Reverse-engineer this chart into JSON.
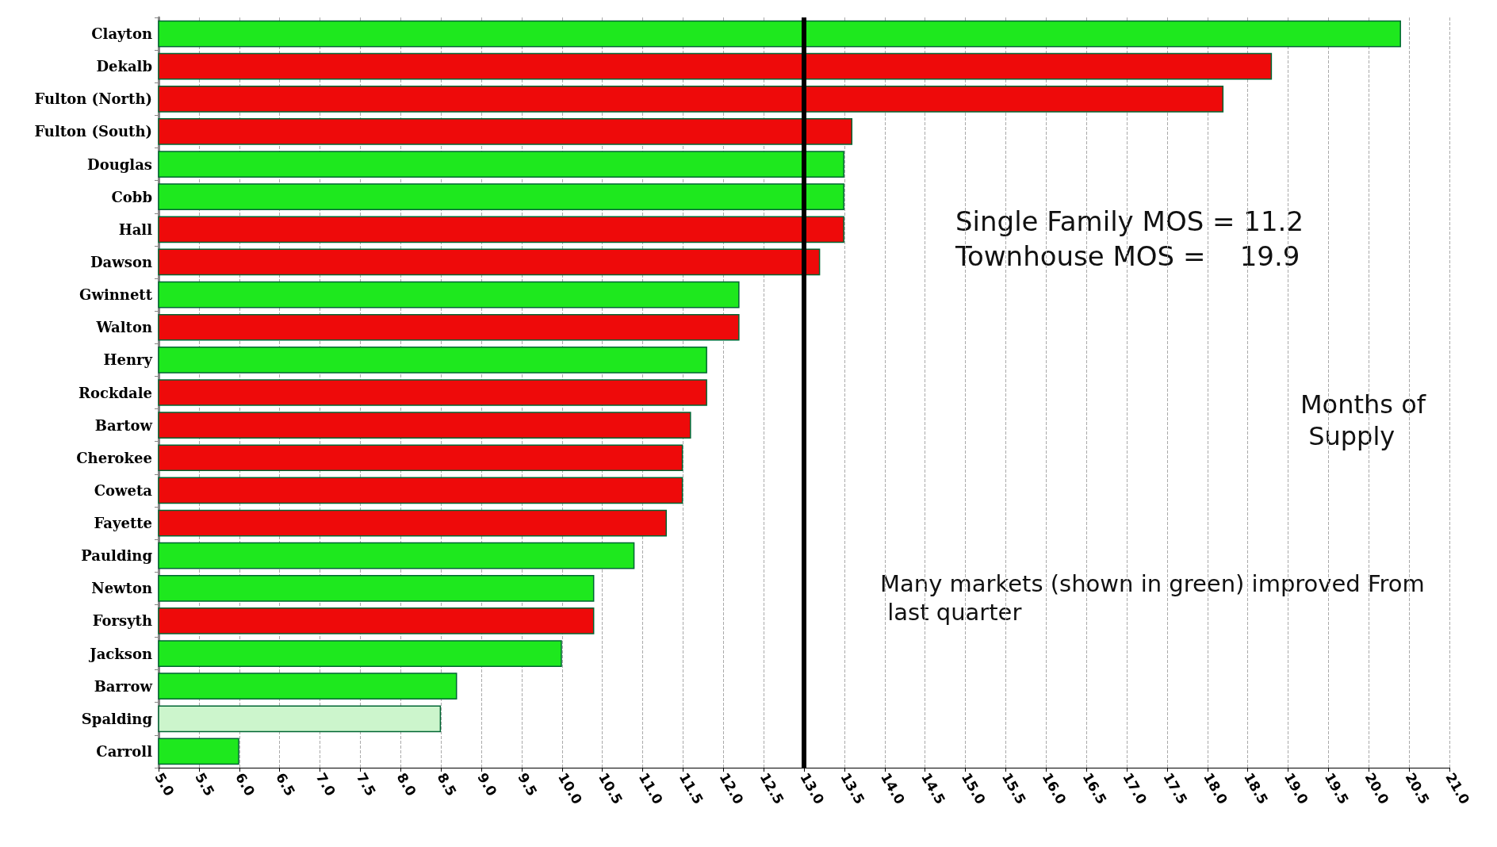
{
  "chart_data": {
    "type": "bar",
    "orientation": "horizontal",
    "categories": [
      "Clayton",
      "Dekalb",
      "Fulton (North)",
      "Fulton (South)",
      "Douglas",
      "Cobb",
      "Hall",
      "Dawson",
      "Gwinnett",
      "Walton",
      "Henry",
      "Rockdale",
      "Bartow",
      "Cherokee",
      "Coweta",
      "Fayette",
      "Paulding",
      "Newton",
      "Forsyth",
      "Jackson",
      "Barrow",
      "Spalding",
      "Carroll"
    ],
    "values": [
      20.4,
      18.8,
      18.2,
      13.6,
      13.5,
      13.5,
      13.5,
      13.2,
      12.2,
      12.2,
      11.8,
      11.8,
      11.6,
      11.5,
      11.5,
      11.3,
      10.9,
      10.4,
      10.4,
      10.0,
      8.7,
      8.5,
      6.0
    ],
    "colors": [
      "#1ee81e",
      "#ee0a0a",
      "#ee0a0a",
      "#ee0a0a",
      "#1ee81e",
      "#1ee81e",
      "#ee0a0a",
      "#ee0a0a",
      "#1ee81e",
      "#ee0a0a",
      "#1ee81e",
      "#ee0a0a",
      "#ee0a0a",
      "#ee0a0a",
      "#ee0a0a",
      "#ee0a0a",
      "#1ee81e",
      "#1ee81e",
      "#ee0a0a",
      "#1ee81e",
      "#1ee81e",
      "#ccf5cc",
      "#1ee81e"
    ],
    "xlim": [
      5,
      21
    ],
    "xticks": [
      {
        "value": 5,
        "label": "5.0"
      },
      {
        "value": 5.5,
        "label": "5.5"
      },
      {
        "value": 6,
        "label": "6.0"
      },
      {
        "value": 6.5,
        "label": "6.5"
      },
      {
        "value": 7,
        "label": "7.0"
      },
      {
        "value": 7.5,
        "label": "7.5"
      },
      {
        "value": 8,
        "label": "8.0"
      },
      {
        "value": 8.5,
        "label": "8.5"
      },
      {
        "value": 9,
        "label": "9.0"
      },
      {
        "value": 9.5,
        "label": "9.5"
      },
      {
        "value": 10,
        "label": "10.0"
      },
      {
        "value": 10.5,
        "label": "10.5"
      },
      {
        "value": 11,
        "label": "11.0"
      },
      {
        "value": 11.5,
        "label": "11.5"
      },
      {
        "value": 12,
        "label": "12.0"
      },
      {
        "value": 12.5,
        "label": "12.5"
      },
      {
        "value": 13,
        "label": "13.0"
      },
      {
        "value": 13.5,
        "label": "13.5"
      },
      {
        "value": 14,
        "label": "14.0"
      },
      {
        "value": 14.5,
        "label": "14.5"
      },
      {
        "value": 15,
        "label": "15.0"
      },
      {
        "value": 15.5,
        "label": "15.5"
      },
      {
        "value": 16,
        "label": "16.0"
      },
      {
        "value": 16.5,
        "label": "16.5"
      },
      {
        "value": 17,
        "label": "17.0"
      },
      {
        "value": 17.5,
        "label": "17.5"
      },
      {
        "value": 18,
        "label": "18.0"
      },
      {
        "value": 18.5,
        "label": "18.5"
      },
      {
        "value": 19,
        "label": "19.0"
      },
      {
        "value": 19.5,
        "label": "19.5"
      },
      {
        "value": 20,
        "label": "20.0"
      },
      {
        "value": 20.5,
        "label": "20.5"
      },
      {
        "value": 21,
        "label": "21.0"
      }
    ],
    "grid": "x",
    "ref_lines": [
      {
        "axis": "x",
        "value": 13,
        "color": "#000000"
      }
    ],
    "annotations": [
      "Single Family MOS = 11.2",
      "Townhouse MOS =    19.9",
      "Months of Supply",
      "Many markets (shown in green) improved From last quarter"
    ]
  }
}
